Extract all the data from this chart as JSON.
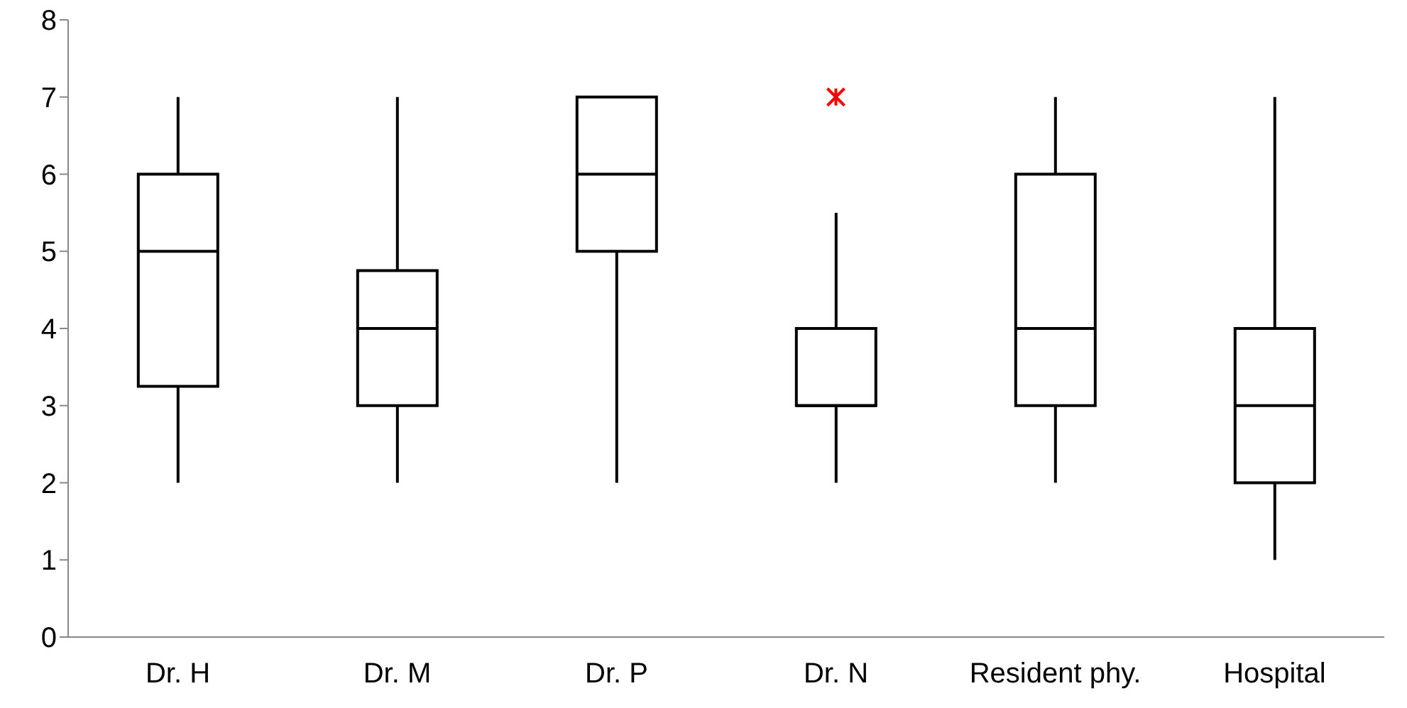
{
  "chart_data": {
    "type": "box",
    "categories": [
      "Dr. H",
      "Dr. M",
      "Dr. P",
      "Dr. N",
      "Resident phy.",
      "Hospital"
    ],
    "ylim": [
      0,
      8
    ],
    "yticks": [
      0,
      1,
      2,
      3,
      4,
      5,
      6,
      7,
      8
    ],
    "series": [
      {
        "color": "#000000",
        "boxes": [
          {
            "low": 2,
            "q1": 3.25,
            "median": 5,
            "q3": 6,
            "high": 7
          },
          {
            "low": 2,
            "q1": 3,
            "median": 4,
            "q3": 4.75,
            "high": 7
          },
          {
            "low": 2,
            "q1": 5,
            "median": 6,
            "q3": 7,
            "high": 7
          },
          {
            "low": 2,
            "q1": 3,
            "median": 3,
            "q3": 4,
            "high": 5.5
          },
          {
            "low": 2,
            "q1": 3,
            "median": 4,
            "q3": 6,
            "high": 7
          },
          {
            "low": 1,
            "q1": 2,
            "median": 3,
            "q3": 4,
            "high": 7
          }
        ]
      },
      {
        "type": "scatter",
        "color": "#ff0000",
        "marker": "cross",
        "x": [
          "Dr. N"
        ],
        "values": [
          7
        ]
      }
    ]
  }
}
